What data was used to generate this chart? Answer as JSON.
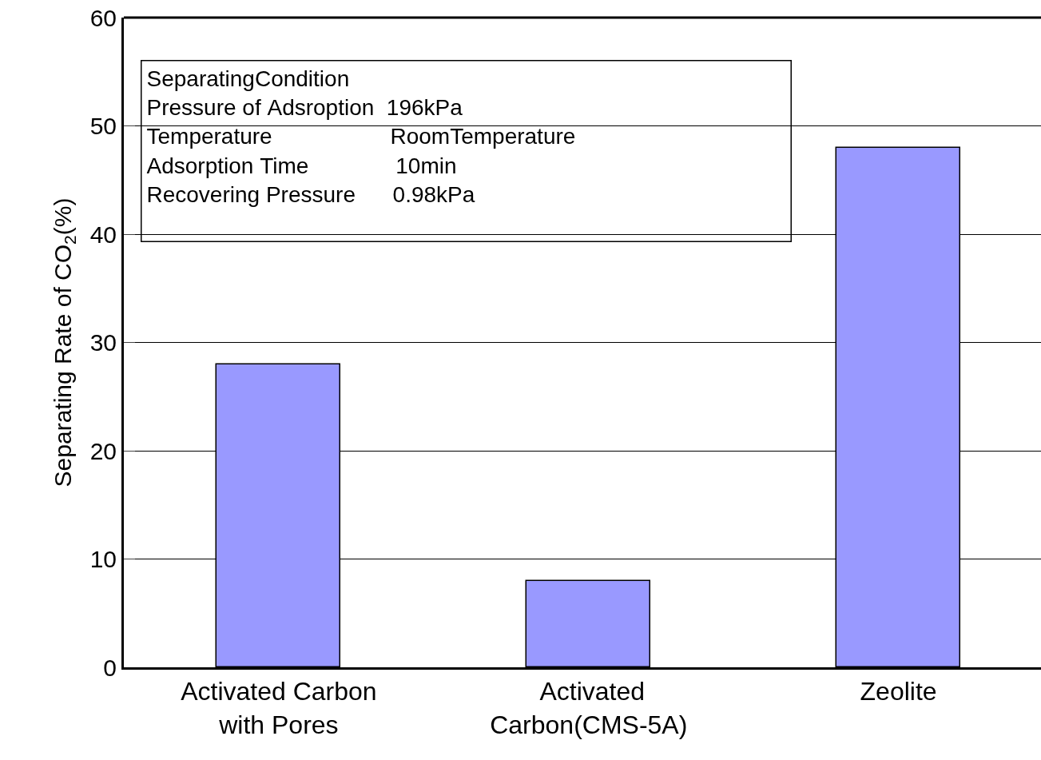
{
  "chart_data": {
    "type": "bar",
    "ylabel": "Separating Rate of CO$_{2}$(%)",
    "categories": [
      "Activated Carbon\nwith Pores",
      " Activated\nCarbon(CMS-5A)",
      "Zeolite"
    ],
    "values": [
      28,
      8,
      48
    ],
    "color": "#9999ff",
    "ylim": [
      0,
      60
    ],
    "yticks": [
      0,
      10,
      20,
      30,
      40,
      50,
      60
    ],
    "grid": "y",
    "annotations": [
      "SeparatingCondition",
      "Pressure of Adsroption  196kPa",
      "Temperature                   RoomTemperature",
      "Adsorption Time              10min",
      "Recovering Pressure      0.98kPa"
    ]
  }
}
